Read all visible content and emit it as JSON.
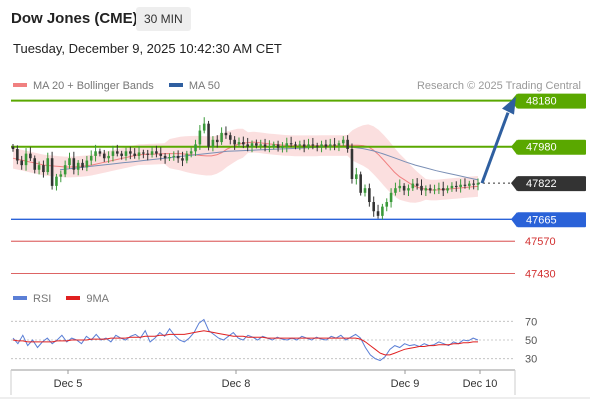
{
  "header": {
    "title": "Dow Jones (CME)",
    "timeframe": "30 MIN",
    "subtitle": "Tuesday, December 9, 2025 10:42:30 AM CET"
  },
  "legend": {
    "ma20": {
      "label": "MA 20 + Bollinger Bands",
      "color": "#f08080"
    },
    "ma50": {
      "label": "MA 50",
      "color": "#2f5fa0"
    },
    "credit": "Research © 2025 Trading Central"
  },
  "rsi_legend": {
    "rsi": {
      "label": "RSI",
      "color": "#5b7fd6"
    },
    "ma9": {
      "label": "9MA",
      "color": "#e02020"
    }
  },
  "chart_data": [
    {
      "type": "candlestick",
      "title": "",
      "xlabel": "",
      "ylabel": "",
      "ylim": [
        47380,
        48200
      ],
      "x_ticks": [
        "Dec 5",
        "Dec 8",
        "Dec 9",
        "Dec 10"
      ],
      "last_price": 47822,
      "levels": [
        {
          "value": 48180,
          "label": "48180",
          "kind": "resistance",
          "color": "#5aa800"
        },
        {
          "value": 47980,
          "label": "47980",
          "kind": "resistance",
          "color": "#5aa800"
        },
        {
          "value": 47822,
          "label": "47822",
          "kind": "last",
          "color": "#333333"
        },
        {
          "value": 47665,
          "label": "47665",
          "kind": "support",
          "color": "#2a62d8"
        },
        {
          "value": 47570,
          "label": "47570",
          "kind": "support",
          "color": "#d23030"
        },
        {
          "value": 47430,
          "label": "47430",
          "kind": "support",
          "color": "#d23030"
        }
      ],
      "forecast_arrow": {
        "from": 47822,
        "to": 48180,
        "color": "#2f5fa0"
      },
      "closes": [
        47970,
        47920,
        47900,
        47950,
        47930,
        47880,
        47900,
        47870,
        47930,
        47810,
        47850,
        47860,
        47900,
        47930,
        47880,
        47910,
        47890,
        47920,
        47940,
        47960,
        47950,
        47930,
        47940,
        47960,
        47950,
        47940,
        47960,
        47950,
        47940,
        47955,
        47950,
        47945,
        47960,
        47950,
        47940,
        47930,
        47935,
        47940,
        47930,
        47920,
        47950,
        47960,
        47990,
        48050,
        48080,
        47980,
        48010,
        48000,
        48040,
        48030,
        48010,
        47990,
        48000,
        47990,
        47980,
        47995,
        47985,
        47990,
        47980,
        47980,
        47990,
        47975,
        47980,
        47995,
        47990,
        47985,
        47990,
        47980,
        47990,
        47985,
        47980,
        47990,
        47980,
        47990,
        47985,
        47995,
        48010,
        47970,
        47840,
        47860,
        47780,
        47800,
        47740,
        47700,
        47680,
        47720,
        47740,
        47780,
        47800,
        47810,
        47790,
        47800,
        47820,
        47810,
        47790,
        47800,
        47790,
        47795,
        47800,
        47790,
        47800,
        47810,
        47805,
        47815,
        47810,
        47820,
        47815,
        47822
      ],
      "ma20": [
        47930,
        47925,
        47920,
        47915,
        47910,
        47905,
        47900,
        47898,
        47896,
        47894,
        47892,
        47892,
        47893,
        47895,
        47897,
        47900,
        47905,
        47910,
        47915,
        47920,
        47925,
        47930,
        47935,
        47940,
        47945,
        47946,
        47947,
        47948,
        47949,
        47950,
        47950,
        47950,
        47950,
        47948,
        47946,
        47944,
        47942,
        47940,
        47940,
        47945,
        47955,
        47970,
        47980,
        47990,
        47995,
        47998,
        48000,
        47998,
        47995,
        47992,
        47990,
        47988,
        47986,
        47985,
        47984,
        47984,
        47984,
        47984,
        47984,
        47985,
        47985,
        47985,
        47985,
        47985,
        47986,
        47986,
        47986,
        47985,
        47980,
        47965,
        47945,
        47920,
        47895,
        47870,
        47850,
        47835,
        47820,
        47808,
        47800,
        47795,
        47792,
        47792,
        47794,
        47796,
        47798,
        47800,
        47802,
        47804,
        47806,
        47808
      ],
      "ma50": [
        47880,
        47885,
        47890,
        47895,
        47900,
        47905,
        47910,
        47915,
        47920,
        47925,
        47930,
        47935,
        47940,
        47945,
        47950,
        47955,
        47960,
        47962,
        47964,
        47966,
        47968,
        47970,
        47972,
        47974,
        47976,
        47978,
        47980,
        47980,
        47978,
        47972,
        47962,
        47948,
        47932,
        47915,
        47900,
        47888,
        47876,
        47866,
        47856,
        47846,
        47836
      ]
    },
    {
      "type": "line",
      "title": "",
      "ylim": [
        20,
        80
      ],
      "y_ticks": [
        70,
        50,
        30
      ],
      "series": [
        {
          "name": "RSI",
          "values": [
            52,
            46,
            55,
            44,
            50,
            42,
            48,
            52,
            46,
            50,
            55,
            48,
            52,
            50,
            46,
            54,
            50,
            56,
            50,
            52,
            48,
            55,
            52,
            50,
            54,
            56,
            52,
            60,
            48,
            52,
            58,
            54,
            62,
            55,
            50,
            48,
            52,
            58,
            68,
            72,
            60,
            56,
            52,
            50,
            54,
            58,
            52,
            50,
            55,
            53,
            50,
            54,
            52,
            50,
            53,
            51,
            50,
            52,
            50,
            54,
            52,
            50,
            53,
            51,
            50,
            54,
            52,
            55,
            50,
            53,
            56,
            52,
            42,
            34,
            30,
            28,
            32,
            40,
            44,
            42,
            46,
            44,
            45,
            43,
            46,
            44,
            45,
            48,
            46,
            44,
            48,
            46,
            50,
            49,
            52,
            50
          ]
        },
        {
          "name": "9MA",
          "values": [
            50,
            49,
            49,
            48,
            48,
            48,
            48,
            48,
            48,
            49,
            49,
            49,
            50,
            50,
            50,
            50,
            51,
            51,
            51,
            51,
            52,
            52,
            52,
            52,
            53,
            53,
            53,
            54,
            54,
            54,
            55,
            55,
            56,
            56,
            56,
            56,
            57,
            58,
            59,
            60,
            59,
            58,
            57,
            56,
            55,
            54,
            54,
            54,
            53,
            53,
            53,
            53,
            52,
            52,
            52,
            52,
            52,
            52,
            52,
            52,
            52,
            52,
            52,
            52,
            52,
            52,
            52,
            52,
            52,
            52,
            52,
            51,
            48,
            44,
            40,
            36,
            34,
            34,
            36,
            38,
            40,
            41,
            42,
            43,
            43,
            44,
            44,
            45,
            45,
            45,
            46,
            46,
            47,
            47,
            48,
            48
          ]
        }
      ]
    }
  ]
}
